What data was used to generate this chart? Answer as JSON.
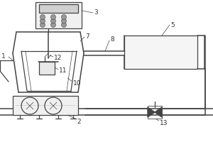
{
  "bg_color": "#ffffff",
  "line_color": "#444444",
  "label_color": "#333333",
  "lw": 0.9,
  "thin": 0.5,
  "thick": 1.1
}
